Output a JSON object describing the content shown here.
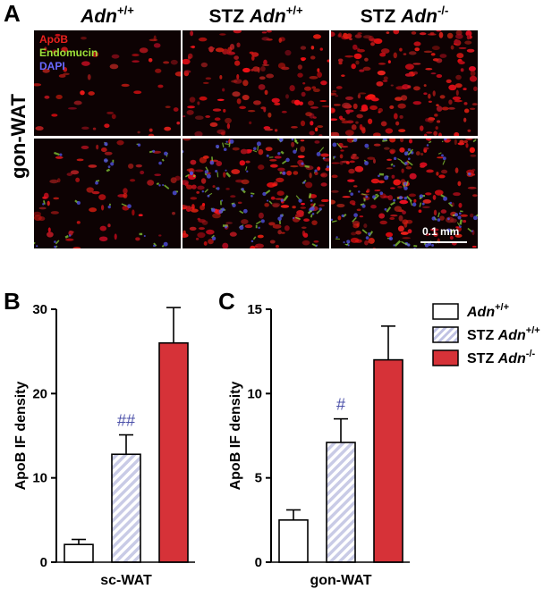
{
  "panelA": {
    "letter": "A",
    "side_label": "gon-WAT",
    "columns": [
      {
        "prefix": "",
        "gene": "Adn",
        "sup": "+/+"
      },
      {
        "prefix": "STZ ",
        "gene": "Adn",
        "sup": "+/+"
      },
      {
        "prefix": "STZ ",
        "gene": "Adn",
        "sup": "-/-"
      }
    ],
    "channel_legend": [
      {
        "label": "ApoB",
        "color": "#e8201c"
      },
      {
        "label": "Endomucin",
        "color": "#9ee23a"
      },
      {
        "label": "DAPI",
        "color": "#5a5aff"
      }
    ],
    "scale_bar": "0.1 mm"
  },
  "legend": [
    {
      "prefix": "",
      "gene": "Adn",
      "sup": "+/+",
      "fill": "#ffffff",
      "pattern": "none"
    },
    {
      "prefix": "STZ ",
      "gene": "Adn",
      "sup": "+/+",
      "fill": "#c9cbe6",
      "pattern": "hatch"
    },
    {
      "prefix": "STZ ",
      "gene": "Adn",
      "sup": "-/-",
      "fill": "#d63238",
      "pattern": "none"
    }
  ],
  "chart_data": [
    {
      "panel": "B",
      "type": "bar",
      "categories": [
        "Adn+/+",
        "STZ Adn+/+",
        "STZ Adn-/-"
      ],
      "values": [
        2.1,
        12.8,
        26.0
      ],
      "errors": [
        0.6,
        2.3,
        4.2
      ],
      "annotations": [
        "",
        "##",
        ""
      ],
      "ylabel": "ApoB IF density",
      "xlabel": "sc-WAT",
      "ylim": [
        0,
        30
      ],
      "yticks": [
        0,
        10,
        20,
        30
      ]
    },
    {
      "panel": "C",
      "type": "bar",
      "categories": [
        "Adn+/+",
        "STZ Adn+/+",
        "STZ Adn-/-"
      ],
      "values": [
        2.5,
        7.1,
        12.0
      ],
      "errors": [
        0.6,
        1.4,
        2.0
      ],
      "annotations": [
        "",
        "#",
        ""
      ],
      "ylabel": "ApoB IF density",
      "xlabel": "gon-WAT",
      "ylim": [
        0,
        15
      ],
      "yticks": [
        0,
        5,
        10,
        15
      ]
    }
  ],
  "colors": {
    "annotation": "#4a4fa8",
    "hatch_line": "#8a8cc8"
  }
}
